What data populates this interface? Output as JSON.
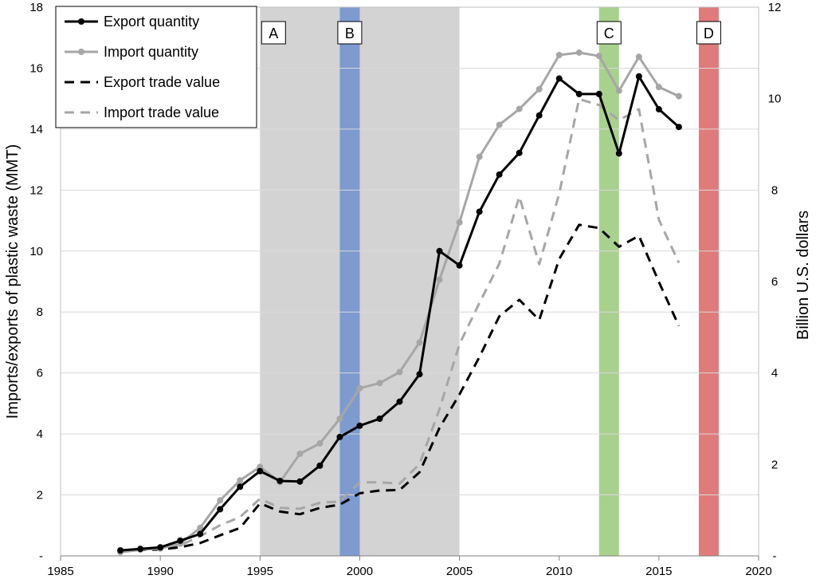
{
  "chart_data": {
    "type": "line",
    "xlabel": "",
    "ylabel": "Imports/exports of plastic waste (MMT)",
    "y2label": "Billion U.S. dollars",
    "xlim": [
      1985,
      2020
    ],
    "ylim": [
      0,
      18
    ],
    "y2lim": [
      0,
      12
    ],
    "x_ticks": [
      "1985",
      "1990",
      "1995",
      "2000",
      "2005",
      "2010",
      "2015",
      "2020"
    ],
    "y_ticks": [
      "-",
      "2",
      "4",
      "6",
      "8",
      "10",
      "12",
      "14",
      "16",
      "18"
    ],
    "y2_ticks": [
      "-",
      "2",
      "4",
      "6",
      "8",
      "10",
      "12"
    ],
    "grid": true,
    "legend_position": "top-left",
    "regions": [
      {
        "label": "A",
        "x0": 1995,
        "x1": 2005,
        "color": "#d3d3d3"
      },
      {
        "label": "B",
        "x0": 1999,
        "x1": 2000,
        "color": "#7d9bcf"
      },
      {
        "label": "C",
        "x0": 2012,
        "x1": 2013,
        "color": "#a9d18e"
      },
      {
        "label": "D",
        "x0": 2017,
        "x1": 2018,
        "color": "#e07b7b"
      }
    ],
    "x": [
      1988,
      1989,
      1990,
      1991,
      1992,
      1993,
      1994,
      1995,
      1996,
      1997,
      1998,
      1999,
      2000,
      2001,
      2002,
      2003,
      2004,
      2005,
      2006,
      2007,
      2008,
      2009,
      2010,
      2011,
      2012,
      2013,
      2014,
      2015,
      2016
    ],
    "series": [
      {
        "name": "Export quantity",
        "axis": "left",
        "style": "solid",
        "markers": true,
        "color": "#000000",
        "values": [
          0.18,
          0.23,
          0.28,
          0.5,
          0.72,
          1.53,
          2.27,
          2.78,
          2.46,
          2.44,
          2.96,
          3.9,
          4.27,
          4.5,
          5.06,
          5.96,
          10.0,
          9.53,
          11.29,
          12.51,
          13.22,
          14.45,
          15.66,
          15.15,
          15.15,
          13.2,
          15.73,
          14.65,
          14.07
        ]
      },
      {
        "name": "Import quantity",
        "axis": "left",
        "style": "solid",
        "markers": true,
        "color": "#a6a6a6",
        "values": [
          0.12,
          0.2,
          0.24,
          0.4,
          0.92,
          1.82,
          2.48,
          2.92,
          2.42,
          3.35,
          3.69,
          4.5,
          5.5,
          5.67,
          6.03,
          7.0,
          9.06,
          10.94,
          13.09,
          14.14,
          14.66,
          15.31,
          16.43,
          16.51,
          16.4,
          15.26,
          16.37,
          15.38,
          15.08
        ]
      },
      {
        "name": "Export trade value",
        "axis": "right",
        "style": "dashed",
        "markers": false,
        "color": "#000000",
        "values": [
          0.1,
          0.13,
          0.14,
          0.19,
          0.28,
          0.45,
          0.61,
          1.15,
          0.97,
          0.91,
          1.05,
          1.12,
          1.37,
          1.43,
          1.44,
          1.83,
          2.8,
          3.53,
          4.35,
          5.24,
          5.6,
          5.16,
          6.49,
          7.24,
          7.17,
          6.76,
          7.0,
          5.99,
          5.03
        ]
      },
      {
        "name": "Import trade value",
        "axis": "right",
        "style": "dashed",
        "markers": false,
        "color": "#a6a6a6",
        "values": [
          0.1,
          0.14,
          0.16,
          0.23,
          0.43,
          0.67,
          0.85,
          1.25,
          1.05,
          1.03,
          1.16,
          1.19,
          1.61,
          1.61,
          1.58,
          2.01,
          3.21,
          4.63,
          5.53,
          6.39,
          7.86,
          6.38,
          7.92,
          9.99,
          9.86,
          9.53,
          9.77,
          7.35,
          6.41
        ]
      }
    ]
  }
}
